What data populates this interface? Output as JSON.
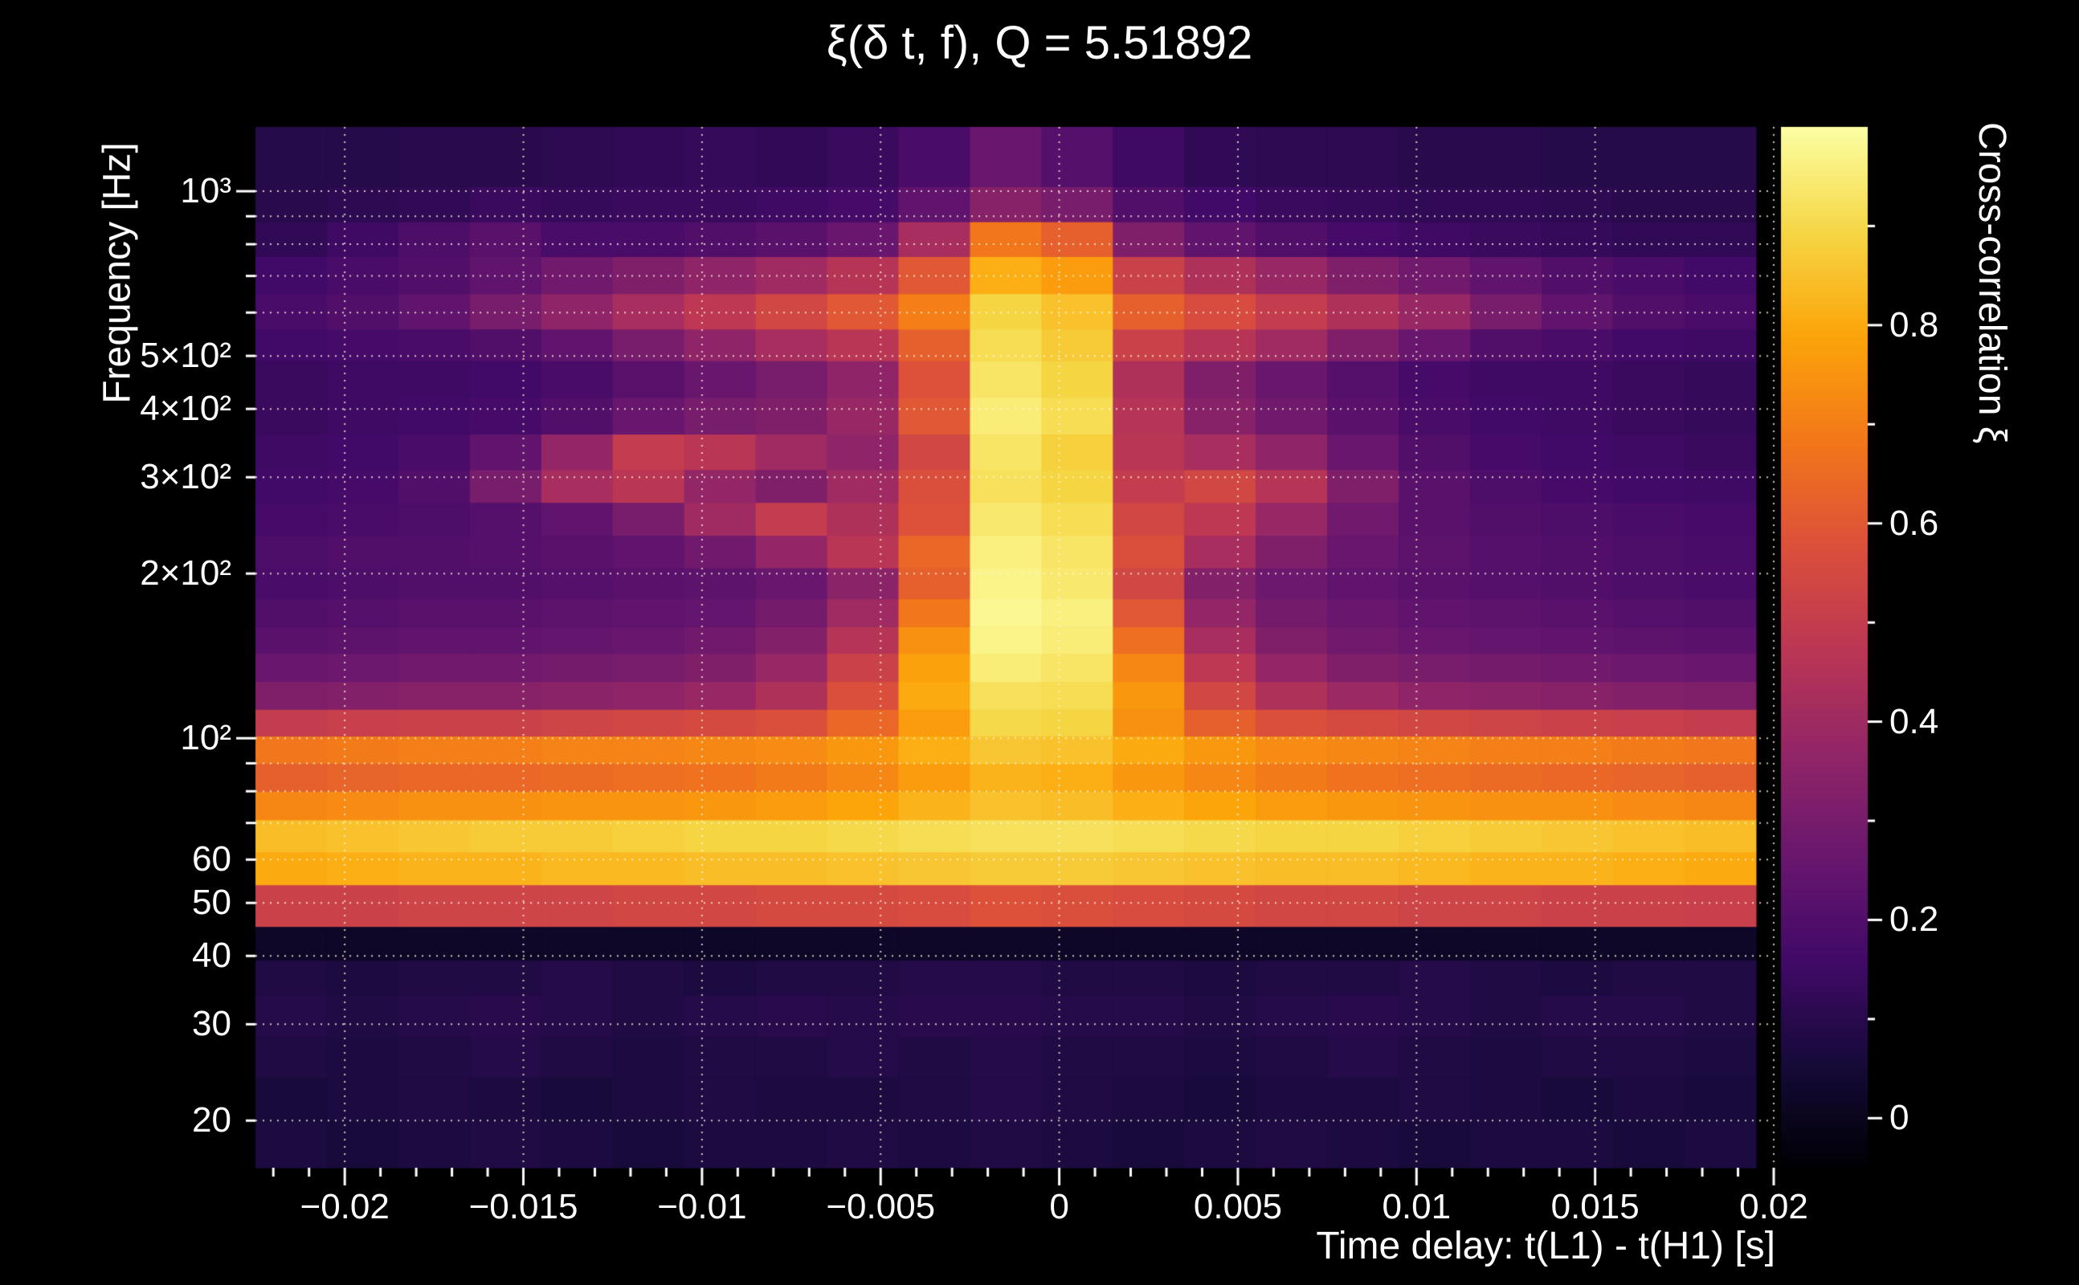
{
  "background_color": "#000000",
  "text_color": "#ffffff",
  "chart_data": {
    "type": "heatmap",
    "title": "ξ(δ t, f), Q = 5.51892",
    "q_value": 5.51892,
    "xlabel": "Time delay: t(L1) - t(H1) [s]",
    "ylabel": "Frequency [Hz]",
    "zlabel": "Cross-correlation ξ",
    "y_scale": "log",
    "x_range": [
      -0.0225,
      0.02
    ],
    "x_data_range": [
      -0.0225,
      0.0195
    ],
    "n_cols": 21,
    "z_range": [
      -0.05,
      1.0
    ],
    "x_ticks": [
      {
        "v": -0.02,
        "label": "−0.02"
      },
      {
        "v": -0.015,
        "label": "−0.015"
      },
      {
        "v": -0.01,
        "label": "−0.01"
      },
      {
        "v": -0.005,
        "label": "−0.005"
      },
      {
        "v": 0,
        "label": "0"
      },
      {
        "v": 0.005,
        "label": "0.005"
      },
      {
        "v": 0.01,
        "label": "0.01"
      },
      {
        "v": 0.015,
        "label": "0.015"
      },
      {
        "v": 0.02,
        "label": "0.02"
      }
    ],
    "y_ticks": [
      {
        "v": 20,
        "label": "20"
      },
      {
        "v": 30,
        "label": "30"
      },
      {
        "v": 40,
        "label": "40"
      },
      {
        "v": 50,
        "label": "50"
      },
      {
        "v": 60,
        "label": "60"
      },
      {
        "v": 100,
        "label": "10²"
      },
      {
        "v": 200,
        "label": "2×10²"
      },
      {
        "v": 300,
        "label": "3×10²"
      },
      {
        "v": 400,
        "label": "4×10²"
      },
      {
        "v": 500,
        "label": "5×10²"
      },
      {
        "v": 1000,
        "label": "10³"
      }
    ],
    "z_ticks": [
      {
        "v": 0,
        "label": "0"
      },
      {
        "v": 0.2,
        "label": "0.2"
      },
      {
        "v": 0.4,
        "label": "0.4"
      },
      {
        "v": 0.6,
        "label": "0.6"
      },
      {
        "v": 0.8,
        "label": "0.8"
      }
    ],
    "x_grid": [
      -0.02,
      -0.015,
      -0.01,
      -0.005,
      0,
      0.005,
      0.01,
      0.015,
      0.02
    ],
    "y_grid": [
      20,
      30,
      40,
      50,
      60,
      70,
      80,
      90,
      100,
      200,
      300,
      400,
      500,
      600,
      700,
      800,
      900,
      1000
    ],
    "freq_edges": [
      16.4,
      20,
      24,
      28.5,
      34,
      39.3,
      45.3,
      54,
      62,
      71,
      80,
      90,
      101,
      113,
      127,
      143,
      160,
      180,
      205,
      235,
      270,
      310,
      360,
      420,
      490,
      560,
      650,
      760,
      880,
      1020,
      1311
    ],
    "values": [
      [
        0.07,
        0.06,
        0.07,
        0.08,
        0.07,
        0.06,
        0.07,
        0.07,
        0.08,
        0.07,
        0.08,
        0.07,
        0.06,
        0.07,
        0.08,
        0.07,
        0.06,
        0.07,
        0.07,
        0.06,
        0.07
      ],
      [
        0.06,
        0.07,
        0.08,
        0.07,
        0.06,
        0.07,
        0.08,
        0.07,
        0.07,
        0.08,
        0.09,
        0.08,
        0.07,
        0.06,
        0.07,
        0.07,
        0.08,
        0.07,
        0.06,
        0.07,
        0.06
      ],
      [
        0.08,
        0.07,
        0.08,
        0.09,
        0.08,
        0.07,
        0.08,
        0.08,
        0.09,
        0.08,
        0.09,
        0.08,
        0.08,
        0.07,
        0.08,
        0.09,
        0.08,
        0.07,
        0.08,
        0.08,
        0.07
      ],
      [
        0.09,
        0.08,
        0.09,
        0.1,
        0.09,
        0.08,
        0.09,
        0.1,
        0.09,
        0.1,
        0.1,
        0.09,
        0.09,
        0.08,
        0.09,
        0.1,
        0.09,
        0.08,
        0.09,
        0.09,
        0.08
      ],
      [
        0.08,
        0.07,
        0.08,
        0.08,
        0.09,
        0.08,
        0.07,
        0.08,
        0.08,
        0.09,
        0.09,
        0.08,
        0.08,
        0.07,
        0.08,
        0.08,
        0.09,
        0.08,
        0.07,
        0.08,
        0.08
      ],
      [
        0.02,
        0.02,
        0.02,
        0.02,
        0.02,
        0.02,
        0.02,
        0.02,
        0.02,
        0.02,
        0.02,
        0.02,
        0.02,
        0.02,
        0.02,
        0.02,
        0.02,
        0.02,
        0.02,
        0.02,
        0.02
      ],
      [
        0.52,
        0.52,
        0.53,
        0.53,
        0.53,
        0.54,
        0.54,
        0.55,
        0.55,
        0.56,
        0.58,
        0.57,
        0.56,
        0.55,
        0.54,
        0.54,
        0.53,
        0.53,
        0.52,
        0.52,
        0.51
      ],
      [
        0.8,
        0.81,
        0.82,
        0.82,
        0.83,
        0.83,
        0.84,
        0.84,
        0.85,
        0.86,
        0.87,
        0.87,
        0.86,
        0.85,
        0.84,
        0.84,
        0.83,
        0.82,
        0.82,
        0.81,
        0.8
      ],
      [
        0.84,
        0.85,
        0.86,
        0.87,
        0.87,
        0.88,
        0.89,
        0.89,
        0.9,
        0.91,
        0.92,
        0.92,
        0.91,
        0.9,
        0.89,
        0.89,
        0.88,
        0.87,
        0.86,
        0.85,
        0.84
      ],
      [
        0.72,
        0.73,
        0.74,
        0.74,
        0.75,
        0.75,
        0.76,
        0.77,
        0.79,
        0.82,
        0.85,
        0.84,
        0.81,
        0.79,
        0.77,
        0.76,
        0.75,
        0.74,
        0.74,
        0.73,
        0.72
      ],
      [
        0.62,
        0.63,
        0.64,
        0.64,
        0.65,
        0.66,
        0.67,
        0.69,
        0.72,
        0.77,
        0.82,
        0.81,
        0.76,
        0.72,
        0.69,
        0.67,
        0.66,
        0.65,
        0.64,
        0.63,
        0.62
      ],
      [
        0.68,
        0.69,
        0.7,
        0.7,
        0.71,
        0.71,
        0.72,
        0.73,
        0.76,
        0.81,
        0.86,
        0.85,
        0.8,
        0.76,
        0.73,
        0.72,
        0.71,
        0.7,
        0.7,
        0.69,
        0.68
      ],
      [
        0.5,
        0.51,
        0.52,
        0.52,
        0.53,
        0.54,
        0.55,
        0.57,
        0.64,
        0.77,
        0.9,
        0.89,
        0.74,
        0.62,
        0.57,
        0.55,
        0.54,
        0.53,
        0.52,
        0.51,
        0.5
      ],
      [
        0.32,
        0.33,
        0.34,
        0.34,
        0.35,
        0.36,
        0.38,
        0.44,
        0.57,
        0.8,
        0.92,
        0.91,
        0.76,
        0.54,
        0.44,
        0.39,
        0.36,
        0.35,
        0.34,
        0.33,
        0.32
      ],
      [
        0.26,
        0.27,
        0.28,
        0.28,
        0.29,
        0.3,
        0.32,
        0.38,
        0.52,
        0.78,
        0.95,
        0.93,
        0.72,
        0.48,
        0.37,
        0.32,
        0.3,
        0.29,
        0.28,
        0.27,
        0.26
      ],
      [
        0.22,
        0.23,
        0.24,
        0.24,
        0.25,
        0.26,
        0.28,
        0.33,
        0.46,
        0.74,
        0.97,
        0.95,
        0.66,
        0.42,
        0.32,
        0.28,
        0.26,
        0.25,
        0.24,
        0.23,
        0.22
      ],
      [
        0.2,
        0.21,
        0.22,
        0.22,
        0.23,
        0.24,
        0.25,
        0.29,
        0.4,
        0.68,
        0.98,
        0.96,
        0.6,
        0.37,
        0.29,
        0.26,
        0.24,
        0.23,
        0.22,
        0.21,
        0.2
      ],
      [
        0.18,
        0.19,
        0.2,
        0.2,
        0.21,
        0.22,
        0.23,
        0.26,
        0.35,
        0.62,
        0.97,
        0.94,
        0.54,
        0.33,
        0.27,
        0.24,
        0.22,
        0.21,
        0.2,
        0.19,
        0.18
      ],
      [
        0.19,
        0.2,
        0.2,
        0.21,
        0.22,
        0.24,
        0.28,
        0.37,
        0.47,
        0.64,
        0.96,
        0.93,
        0.57,
        0.42,
        0.32,
        0.26,
        0.23,
        0.21,
        0.2,
        0.19,
        0.18
      ],
      [
        0.17,
        0.18,
        0.19,
        0.21,
        0.24,
        0.3,
        0.4,
        0.5,
        0.44,
        0.58,
        0.94,
        0.91,
        0.54,
        0.48,
        0.38,
        0.28,
        0.22,
        0.2,
        0.19,
        0.18,
        0.17
      ],
      [
        0.16,
        0.17,
        0.2,
        0.3,
        0.42,
        0.47,
        0.37,
        0.32,
        0.4,
        0.57,
        0.92,
        0.89,
        0.5,
        0.54,
        0.46,
        0.32,
        0.22,
        0.19,
        0.17,
        0.16,
        0.15
      ],
      [
        0.15,
        0.16,
        0.18,
        0.24,
        0.37,
        0.5,
        0.47,
        0.4,
        0.36,
        0.54,
        0.93,
        0.88,
        0.47,
        0.42,
        0.36,
        0.26,
        0.2,
        0.17,
        0.16,
        0.15,
        0.14
      ],
      [
        0.14,
        0.15,
        0.16,
        0.17,
        0.2,
        0.26,
        0.3,
        0.32,
        0.38,
        0.6,
        0.95,
        0.91,
        0.46,
        0.34,
        0.28,
        0.22,
        0.18,
        0.16,
        0.15,
        0.14,
        0.13
      ],
      [
        0.14,
        0.15,
        0.15,
        0.16,
        0.18,
        0.22,
        0.26,
        0.3,
        0.36,
        0.58,
        0.93,
        0.89,
        0.44,
        0.32,
        0.26,
        0.21,
        0.17,
        0.15,
        0.15,
        0.14,
        0.13
      ],
      [
        0.16,
        0.17,
        0.18,
        0.2,
        0.24,
        0.3,
        0.36,
        0.42,
        0.47,
        0.62,
        0.91,
        0.87,
        0.52,
        0.46,
        0.4,
        0.32,
        0.26,
        0.2,
        0.18,
        0.16,
        0.15
      ],
      [
        0.18,
        0.2,
        0.24,
        0.3,
        0.36,
        0.42,
        0.48,
        0.54,
        0.6,
        0.7,
        0.89,
        0.85,
        0.62,
        0.56,
        0.5,
        0.44,
        0.38,
        0.3,
        0.24,
        0.2,
        0.18
      ],
      [
        0.16,
        0.18,
        0.2,
        0.24,
        0.28,
        0.32,
        0.36,
        0.4,
        0.46,
        0.6,
        0.81,
        0.77,
        0.52,
        0.44,
        0.38,
        0.32,
        0.28,
        0.24,
        0.2,
        0.18,
        0.16
      ],
      [
        0.12,
        0.15,
        0.19,
        0.22,
        0.18,
        0.18,
        0.2,
        0.22,
        0.26,
        0.42,
        0.68,
        0.62,
        0.32,
        0.24,
        0.2,
        0.17,
        0.15,
        0.14,
        0.13,
        0.12,
        0.12
      ],
      [
        0.1,
        0.11,
        0.12,
        0.14,
        0.13,
        0.14,
        0.14,
        0.15,
        0.17,
        0.24,
        0.34,
        0.3,
        0.2,
        0.16,
        0.14,
        0.13,
        0.12,
        0.12,
        0.11,
        0.1,
        0.1
      ],
      [
        0.09,
        0.09,
        0.1,
        0.1,
        0.11,
        0.12,
        0.13,
        0.12,
        0.14,
        0.18,
        0.26,
        0.21,
        0.15,
        0.12,
        0.11,
        0.11,
        0.1,
        0.1,
        0.09,
        0.09,
        0.09
      ]
    ],
    "colormap_stops": [
      [
        0.0,
        0,
        0,
        4
      ],
      [
        0.1,
        22,
        11,
        57
      ],
      [
        0.2,
        66,
        10,
        104
      ],
      [
        0.3,
        106,
        23,
        110
      ],
      [
        0.4,
        147,
        38,
        103
      ],
      [
        0.5,
        188,
        55,
        84
      ],
      [
        0.6,
        221,
        81,
        58
      ],
      [
        0.7,
        243,
        120,
        25
      ],
      [
        0.8,
        252,
        165,
        10
      ],
      [
        0.9,
        246,
        215,
        70
      ],
      [
        1.0,
        252,
        255,
        164
      ]
    ]
  }
}
